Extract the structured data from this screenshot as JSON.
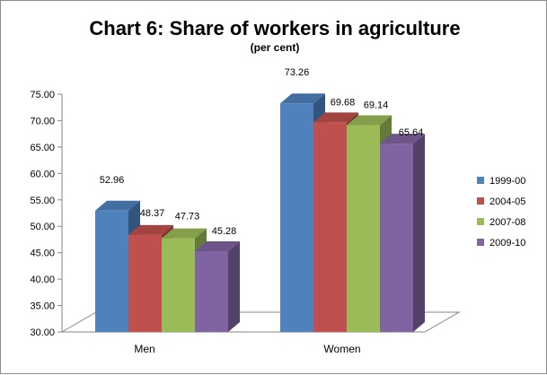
{
  "chart_data": {
    "type": "bar",
    "title": "Chart 6: Share of workers in agriculture",
    "subtitle": "(per cent)",
    "xlabel": "",
    "ylabel": "",
    "categories": [
      "Men",
      "Women"
    ],
    "series": [
      {
        "name": "1999-00",
        "values": [
          52.96,
          73.26
        ],
        "color": "#4f81bd"
      },
      {
        "name": "2004-05",
        "values": [
          48.37,
          69.68
        ],
        "color": "#c0504d"
      },
      {
        "name": "2007-08",
        "values": [
          47.73,
          69.14
        ],
        "color": "#9bbb59"
      },
      {
        "name": "2009-10",
        "values": [
          45.28,
          65.64
        ],
        "color": "#8064a2"
      }
    ],
    "value_labels": [
      [
        "52.96",
        "73.26"
      ],
      [
        "48.37",
        "69.68"
      ],
      [
        "47.73",
        "69.14"
      ],
      [
        "45.28",
        "65.64"
      ]
    ],
    "ylim": [
      30,
      75
    ],
    "y_ticks": [
      "30.00",
      "35.00",
      "40.00",
      "45.00",
      "50.00",
      "55.00",
      "60.00",
      "65.00",
      "70.00",
      "75.00"
    ],
    "grid": false,
    "legend": "right",
    "style": "3d-clustered-column"
  }
}
